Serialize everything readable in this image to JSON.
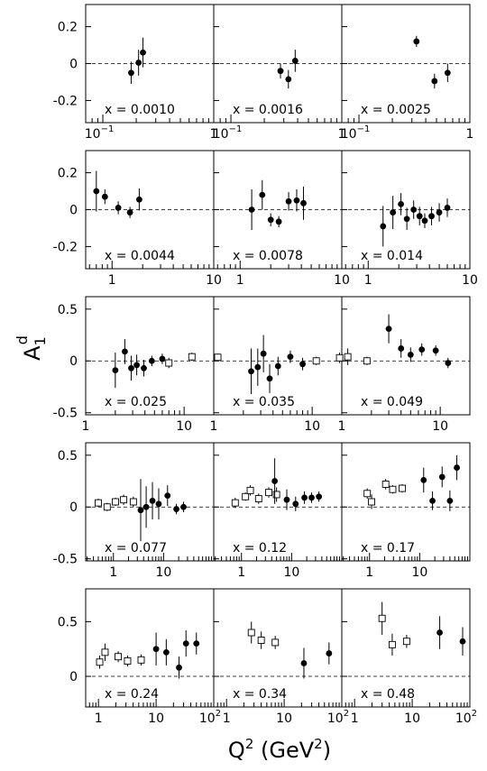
{
  "figure": {
    "ylabel": "A",
    "ylabel_sub": "1",
    "ylabel_sup": "d",
    "xlabel_main": "Q",
    "xlabel_sup": "2",
    "xlabel_unit_open": " (GeV",
    "xlabel_unit_sup": "2",
    "xlabel_unit_close": ")"
  },
  "rows": [
    {
      "xlog": [
        0.07,
        1
      ],
      "ylim": [
        -0.32,
        0.32
      ],
      "yticks": [
        {
          "v": 0.2,
          "label": "0.2"
        },
        {
          "v": 0,
          "label": "0"
        },
        {
          "v": -0.2,
          "label": "-0.2"
        }
      ],
      "xticks": [
        {
          "v": 0.1,
          "label": "10",
          "sup": "−1"
        },
        {
          "v": 1,
          "label": "1"
        }
      ]
    },
    {
      "xlog": [
        0.55,
        10
      ],
      "ylim": [
        -0.32,
        0.32
      ],
      "yticks": [
        {
          "v": 0.2,
          "label": "0.2"
        },
        {
          "v": 0,
          "label": "0"
        },
        {
          "v": -0.2,
          "label": "-0.2"
        }
      ],
      "xticks": [
        {
          "v": 1,
          "label": "1"
        },
        {
          "v": 10,
          "label": "10"
        }
      ]
    },
    {
      "xlog": [
        1,
        20
      ],
      "ylim": [
        -0.52,
        0.62
      ],
      "yticks": [
        {
          "v": 0.5,
          "label": "0.5"
        },
        {
          "v": 0,
          "label": "0"
        },
        {
          "v": -0.5,
          "label": "-0.5"
        }
      ],
      "xticks": [
        {
          "v": 1,
          "label": "1"
        },
        {
          "v": 10,
          "label": "10"
        }
      ]
    },
    {
      "xlog": [
        0.28,
        100
      ],
      "ylim": [
        -0.52,
        0.62
      ],
      "yticks": [
        {
          "v": 0.5,
          "label": "0.5"
        },
        {
          "v": 0,
          "label": "0"
        },
        {
          "v": -0.5,
          "label": "-0.5"
        }
      ],
      "xticks": [
        {
          "v": 1,
          "label": "1"
        },
        {
          "v": 10,
          "label": "10"
        }
      ]
    },
    {
      "xlog": [
        0.6,
        100
      ],
      "ylim": [
        -0.28,
        0.8
      ],
      "yticks": [
        {
          "v": 0.5,
          "label": "0.5"
        },
        {
          "v": 0,
          "label": "0"
        }
      ],
      "xticks": [
        {
          "v": 1,
          "label": "1"
        },
        {
          "v": 10,
          "label": "10"
        },
        {
          "v": 100,
          "label": "10",
          "sup": "2"
        }
      ]
    }
  ],
  "chart_data": {
    "type": "scatter",
    "xlabel": "Q² (GeV²)",
    "ylabel": "A₁ᵈ",
    "xscale": "log",
    "grid": false,
    "reference_line": 0,
    "panels": [
      {
        "label": "x = 0.0010",
        "points": [
          {
            "x": 0.18,
            "y": -0.05,
            "err": 0.06,
            "open": false
          },
          {
            "x": 0.21,
            "y": 0.005,
            "err": 0.07,
            "open": false
          },
          {
            "x": 0.23,
            "y": 0.06,
            "err": 0.08,
            "open": false
          }
        ]
      },
      {
        "label": "x = 0.0016",
        "points": [
          {
            "x": 0.28,
            "y": -0.04,
            "err": 0.04,
            "open": false
          },
          {
            "x": 0.33,
            "y": -0.085,
            "err": 0.05,
            "open": false
          },
          {
            "x": 0.38,
            "y": 0.015,
            "err": 0.06,
            "open": false
          }
        ]
      },
      {
        "label": "x = 0.0025",
        "points": [
          {
            "x": 0.33,
            "y": 0.12,
            "err": 0.03,
            "open": false
          },
          {
            "x": 0.48,
            "y": -0.095,
            "err": 0.04,
            "open": false
          },
          {
            "x": 0.63,
            "y": -0.05,
            "err": 0.05,
            "open": false
          }
        ]
      },
      {
        "label": "x = 0.0044",
        "points": [
          {
            "x": 0.7,
            "y": 0.1,
            "err": 0.11,
            "open": false
          },
          {
            "x": 0.85,
            "y": 0.07,
            "err": 0.04,
            "open": false
          },
          {
            "x": 1.15,
            "y": 0.01,
            "err": 0.035,
            "open": false
          },
          {
            "x": 1.5,
            "y": -0.015,
            "err": 0.03,
            "open": false
          },
          {
            "x": 1.85,
            "y": 0.055,
            "err": 0.06,
            "open": false
          }
        ]
      },
      {
        "label": "x = 0.0078",
        "points": [
          {
            "x": 1.3,
            "y": 0.0,
            "err": 0.11,
            "open": false
          },
          {
            "x": 1.65,
            "y": 0.08,
            "err": 0.08,
            "open": false
          },
          {
            "x": 2.0,
            "y": -0.055,
            "err": 0.035,
            "open": false
          },
          {
            "x": 2.4,
            "y": -0.065,
            "err": 0.03,
            "open": false
          },
          {
            "x": 3.0,
            "y": 0.045,
            "err": 0.05,
            "open": false
          },
          {
            "x": 3.6,
            "y": 0.05,
            "err": 0.06,
            "open": false
          },
          {
            "x": 4.2,
            "y": 0.035,
            "err": 0.09,
            "open": false
          }
        ]
      },
      {
        "label": "x = 0.014",
        "points": [
          {
            "x": 1.4,
            "y": -0.09,
            "err": 0.11,
            "open": false
          },
          {
            "x": 1.75,
            "y": -0.015,
            "err": 0.09,
            "open": false
          },
          {
            "x": 2.1,
            "y": 0.03,
            "err": 0.06,
            "open": false
          },
          {
            "x": 2.4,
            "y": -0.05,
            "err": 0.06,
            "open": false
          },
          {
            "x": 2.8,
            "y": 0.0,
            "err": 0.05,
            "open": false
          },
          {
            "x": 3.2,
            "y": -0.035,
            "err": 0.05,
            "open": false
          },
          {
            "x": 3.6,
            "y": -0.06,
            "err": 0.04,
            "open": false
          },
          {
            "x": 4.2,
            "y": -0.035,
            "err": 0.05,
            "open": false
          },
          {
            "x": 5.0,
            "y": -0.015,
            "err": 0.05,
            "open": false
          },
          {
            "x": 6.0,
            "y": 0.01,
            "err": 0.05,
            "open": false
          }
        ]
      },
      {
        "label": "x = 0.025",
        "points": [
          {
            "x": 2.0,
            "y": -0.09,
            "err": 0.17,
            "open": false
          },
          {
            "x": 2.5,
            "y": 0.09,
            "err": 0.12,
            "open": false
          },
          {
            "x": 2.9,
            "y": -0.07,
            "err": 0.12,
            "open": false
          },
          {
            "x": 3.3,
            "y": -0.04,
            "err": 0.1,
            "open": false
          },
          {
            "x": 3.9,
            "y": -0.07,
            "err": 0.08,
            "open": false
          },
          {
            "x": 4.7,
            "y": 0.0,
            "err": 0.05,
            "open": false
          },
          {
            "x": 6.0,
            "y": 0.02,
            "err": 0.05,
            "open": false
          }
        ]
      },
      {
        "label": "x = 0.035",
        "points": [
          {
            "x": 0.35,
            "y": -0.02,
            "err": 0.05,
            "open": true
          },
          {
            "x": 0.6,
            "y": 0.04,
            "err": 0.04,
            "open": true
          },
          {
            "x": 1.1,
            "y": 0.035,
            "err": 0.035,
            "open": true
          },
          {
            "x": 2.4,
            "y": -0.1,
            "err": 0.22,
            "open": false
          },
          {
            "x": 2.8,
            "y": -0.06,
            "err": 0.18,
            "open": false
          },
          {
            "x": 3.2,
            "y": 0.07,
            "err": 0.18,
            "open": false
          },
          {
            "x": 3.7,
            "y": -0.17,
            "err": 0.14,
            "open": false
          },
          {
            "x": 4.5,
            "y": -0.05,
            "err": 0.09,
            "open": false
          },
          {
            "x": 6.0,
            "y": 0.04,
            "err": 0.06,
            "open": false
          },
          {
            "x": 8.0,
            "y": -0.03,
            "err": 0.06,
            "open": false
          }
        ]
      },
      {
        "label": "x = 0.049",
        "points": [
          {
            "x": 0.55,
            "y": 0.0,
            "err": 0.04,
            "open": true
          },
          {
            "x": 0.95,
            "y": 0.03,
            "err": 0.05,
            "open": true
          },
          {
            "x": 1.15,
            "y": 0.04,
            "err": 0.08,
            "open": true
          },
          {
            "x": 1.8,
            "y": 0.0,
            "err": 0.04,
            "open": true
          },
          {
            "x": 3.0,
            "y": 0.31,
            "err": 0.14,
            "open": false
          },
          {
            "x": 4.0,
            "y": 0.12,
            "err": 0.09,
            "open": false
          },
          {
            "x": 5.0,
            "y": 0.06,
            "err": 0.07,
            "open": false
          },
          {
            "x": 6.5,
            "y": 0.11,
            "err": 0.06,
            "open": false
          },
          {
            "x": 9.0,
            "y": 0.1,
            "err": 0.05,
            "open": false
          },
          {
            "x": 12.0,
            "y": -0.02,
            "err": 0.05,
            "open": false
          }
        ]
      },
      {
        "label": "x = 0.077",
        "points": [
          {
            "x": 0.5,
            "y": 0.04,
            "err": 0.04,
            "open": true
          },
          {
            "x": 0.75,
            "y": 0.0,
            "err": 0.04,
            "open": true
          },
          {
            "x": 1.1,
            "y": 0.05,
            "err": 0.04,
            "open": true
          },
          {
            "x": 1.6,
            "y": 0.07,
            "err": 0.05,
            "open": true
          },
          {
            "x": 2.5,
            "y": 0.05,
            "err": 0.05,
            "open": true
          },
          {
            "x": 3.5,
            "y": -0.03,
            "err": 0.3,
            "open": false
          },
          {
            "x": 4.5,
            "y": 0.0,
            "err": 0.2,
            "open": false
          },
          {
            "x": 6.0,
            "y": 0.06,
            "err": 0.18,
            "open": false
          },
          {
            "x": 8.0,
            "y": 0.03,
            "err": 0.15,
            "open": false
          },
          {
            "x": 12.0,
            "y": 0.11,
            "err": 0.1,
            "open": false
          },
          {
            "x": 18.0,
            "y": -0.02,
            "err": 0.05,
            "open": false
          },
          {
            "x": 25.0,
            "y": 0.0,
            "err": 0.05,
            "open": false
          }
        ]
      },
      {
        "label": "x = 0.12",
        "points": [
          {
            "x": 0.75,
            "y": 0.04,
            "err": 0.05,
            "open": true
          },
          {
            "x": 1.2,
            "y": 0.1,
            "err": 0.04,
            "open": true
          },
          {
            "x": 1.5,
            "y": 0.16,
            "err": 0.05,
            "open": true
          },
          {
            "x": 2.2,
            "y": 0.08,
            "err": 0.05,
            "open": true
          },
          {
            "x": 3.5,
            "y": 0.14,
            "err": 0.05,
            "open": true
          },
          {
            "x": 5.0,
            "y": 0.12,
            "err": 0.07,
            "open": true
          },
          {
            "x": 4.6,
            "y": 0.25,
            "err": 0.22,
            "open": false
          },
          {
            "x": 8.0,
            "y": 0.07,
            "err": 0.1,
            "open": false
          },
          {
            "x": 12.0,
            "y": 0.03,
            "err": 0.07,
            "open": false
          },
          {
            "x": 18.0,
            "y": 0.09,
            "err": 0.06,
            "open": false
          },
          {
            "x": 25.0,
            "y": 0.09,
            "err": 0.05,
            "open": false
          },
          {
            "x": 35.0,
            "y": 0.1,
            "err": 0.05,
            "open": false
          }
        ]
      },
      {
        "label": "x = 0.17",
        "points": [
          {
            "x": 0.9,
            "y": 0.13,
            "err": 0.05,
            "open": true
          },
          {
            "x": 1.1,
            "y": 0.05,
            "err": 0.07,
            "open": true
          },
          {
            "x": 2.1,
            "y": 0.22,
            "err": 0.05,
            "open": true
          },
          {
            "x": 2.9,
            "y": 0.17,
            "err": 0.04,
            "open": true
          },
          {
            "x": 4.5,
            "y": 0.18,
            "err": 0.04,
            "open": true
          },
          {
            "x": 12.0,
            "y": 0.26,
            "err": 0.12,
            "open": false
          },
          {
            "x": 18.0,
            "y": 0.06,
            "err": 0.09,
            "open": false
          },
          {
            "x": 28.0,
            "y": 0.29,
            "err": 0.1,
            "open": false
          },
          {
            "x": 40.0,
            "y": 0.06,
            "err": 0.1,
            "open": false
          },
          {
            "x": 55.0,
            "y": 0.38,
            "err": 0.12,
            "open": false
          }
        ]
      },
      {
        "label": "x = 0.24",
        "points": [
          {
            "x": 1.05,
            "y": 0.13,
            "err": 0.06,
            "open": true
          },
          {
            "x": 1.3,
            "y": 0.22,
            "err": 0.08,
            "open": true
          },
          {
            "x": 2.2,
            "y": 0.18,
            "err": 0.05,
            "open": true
          },
          {
            "x": 3.2,
            "y": 0.14,
            "err": 0.05,
            "open": true
          },
          {
            "x": 5.5,
            "y": 0.15,
            "err": 0.05,
            "open": true
          },
          {
            "x": 10.0,
            "y": 0.25,
            "err": 0.15,
            "open": false
          },
          {
            "x": 15.0,
            "y": 0.22,
            "err": 0.12,
            "open": false
          },
          {
            "x": 25.0,
            "y": 0.08,
            "err": 0.1,
            "open": false
          },
          {
            "x": 33.0,
            "y": 0.3,
            "err": 0.12,
            "open": false
          },
          {
            "x": 50.0,
            "y": 0.3,
            "err": 0.1,
            "open": false
          }
        ]
      },
      {
        "label": "x = 0.34",
        "points": [
          {
            "x": 2.7,
            "y": 0.4,
            "err": 0.1,
            "open": true
          },
          {
            "x": 4.0,
            "y": 0.33,
            "err": 0.08,
            "open": true
          },
          {
            "x": 7.0,
            "y": 0.31,
            "err": 0.06,
            "open": true
          },
          {
            "x": 22.0,
            "y": 0.12,
            "err": 0.14,
            "open": false
          },
          {
            "x": 60.0,
            "y": 0.21,
            "err": 0.1,
            "open": false
          }
        ]
      },
      {
        "label": "x = 0.48",
        "points": [
          {
            "x": 3.0,
            "y": 0.53,
            "err": 0.15,
            "open": true
          },
          {
            "x": 4.5,
            "y": 0.29,
            "err": 0.1,
            "open": true
          },
          {
            "x": 8.0,
            "y": 0.32,
            "err": 0.06,
            "open": true
          },
          {
            "x": 30.0,
            "y": 0.4,
            "err": 0.15,
            "open": false
          },
          {
            "x": 75.0,
            "y": 0.32,
            "err": 0.13,
            "open": false
          }
        ]
      }
    ]
  }
}
